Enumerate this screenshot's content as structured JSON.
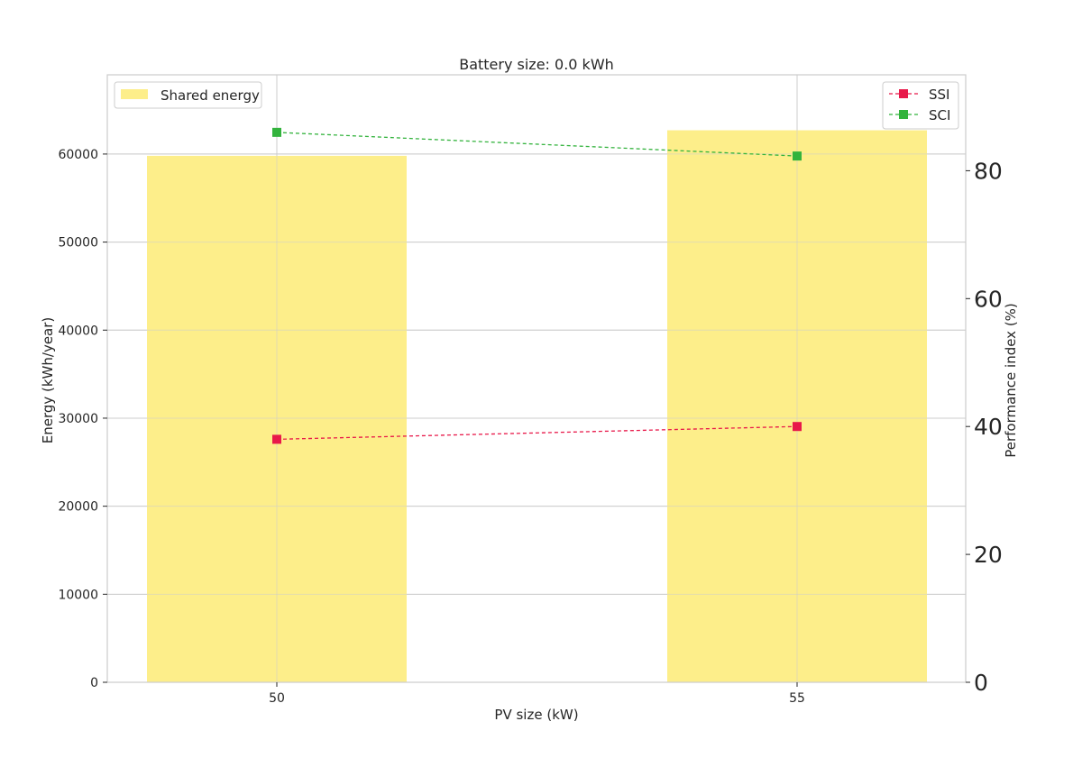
{
  "chart_data": {
    "type": "bar",
    "title": "Battery size: 0.0 kWh",
    "xlabel": "PV size (kW)",
    "ylabel": "Energy (kWh/year)",
    "y2label": "Performance index (%)",
    "categories": [
      "50",
      "55"
    ],
    "ylim": [
      0,
      69000
    ],
    "y2lim": [
      0,
      95
    ],
    "yticks": [
      0,
      10000,
      20000,
      30000,
      40000,
      50000,
      60000
    ],
    "y2ticks": [
      0,
      20,
      40,
      60,
      80
    ],
    "grid": true,
    "bar_series": {
      "name": "Shared energy",
      "values": [
        59800,
        62700
      ],
      "color": "#fdee8a"
    },
    "line_series": [
      {
        "name": "SSI",
        "axis": "right",
        "values": [
          38.0,
          40.0
        ],
        "color": "#e8194a"
      },
      {
        "name": "SCI",
        "axis": "right",
        "values": [
          86.0,
          82.3
        ],
        "color": "#33b33d"
      }
    ],
    "legend_bars": "top-left",
    "legend_lines": "top-right"
  }
}
